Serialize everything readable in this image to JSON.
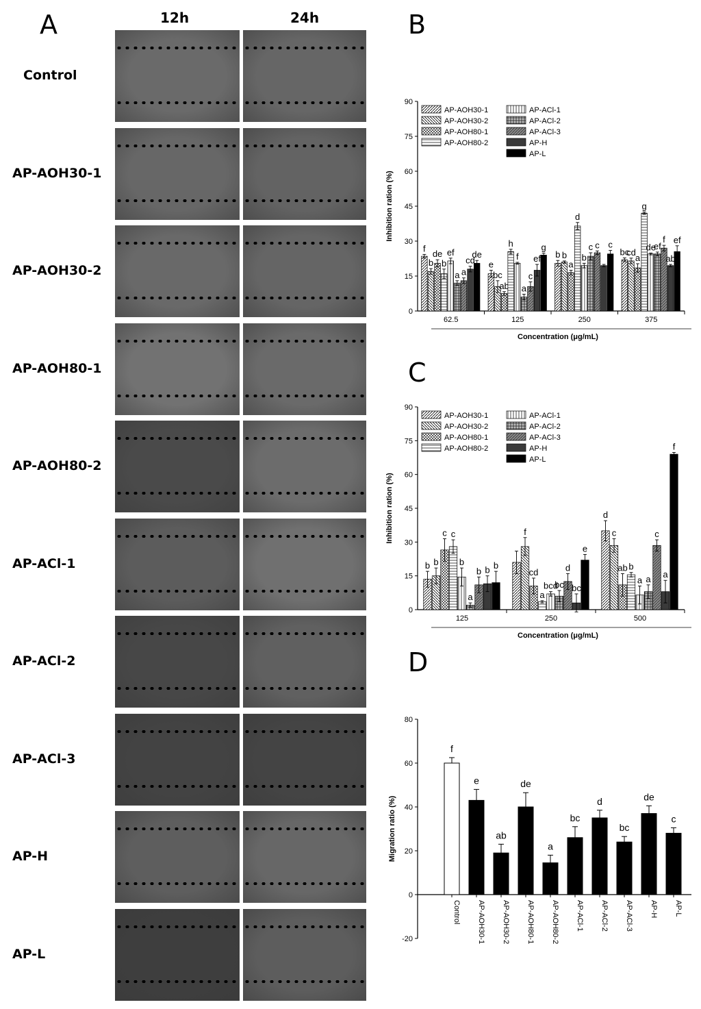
{
  "panel_labels": {
    "a": "A",
    "b": "B",
    "c": "C",
    "d": "D"
  },
  "panel_a": {
    "columns": [
      "12h",
      "24h"
    ],
    "rows": [
      "Control",
      "AP-AOH30-1",
      "AP-AOH30-2",
      "AP-AOH80-1",
      "AP-AOH80-2",
      "AP-ACl-1",
      "AP-ACl-2",
      "AP-ACl-3",
      "AP-H",
      "AP-L"
    ],
    "image_shade": [
      "#6a6a6a",
      "#676767",
      "#696969",
      "#727272",
      "#4a4a4a",
      "#5c5c5c",
      "#474747",
      "#434343",
      "#5e5e5e",
      "#3e3e3e"
    ],
    "image_shade_24": [
      "#666666",
      "#636363",
      "#656565",
      "#6a6a6a",
      "#6c6c6c",
      "#707070",
      "#606060",
      "#444444",
      "#676767",
      "#5d5d5d"
    ]
  },
  "chart_data": [
    {
      "type": "bar",
      "id": "B",
      "ylabel": "Inhibition ration (%)",
      "xlabel": "Concentration (μg/mL)",
      "ylim": [
        0,
        90
      ],
      "yticks": [
        0,
        15,
        30,
        45,
        60,
        75,
        90
      ],
      "categories": [
        "62.5",
        "125",
        "250",
        "375"
      ],
      "legend_left": [
        "AP-AOH30-1",
        "AP-AOH30-2",
        "AP-AOH80-1",
        "AP-AOH80-2"
      ],
      "legend_right": [
        "AP-ACl-1",
        "AP-ACl-2",
        "AP-ACl-3",
        "AP-H",
        "AP-L"
      ],
      "series": [
        {
          "name": "AP-AOH30-1",
          "values": [
            23.5,
            16,
            20.5,
            22
          ],
          "errors": [
            0.8,
            1.5,
            1.2,
            0.8
          ],
          "letters": [
            "f",
            "e",
            "b",
            "bc"
          ]
        },
        {
          "name": "AP-AOH30-2",
          "values": [
            17,
            10.5,
            21,
            21.5
          ],
          "errors": [
            1.2,
            2.5,
            0.5,
            1.2
          ],
          "letters": [
            "b",
            "bc",
            "b",
            "cd"
          ]
        },
        {
          "name": "AP-AOH80-1",
          "values": [
            20.5,
            7.5,
            16.5,
            18.5
          ],
          "errors": [
            1.5,
            0.8,
            1,
            1.8
          ],
          "letters": [
            "de",
            "ab",
            "a",
            "a"
          ]
        },
        {
          "name": "AP-AOH80-2",
          "values": [
            16,
            25.5,
            36.5,
            42
          ],
          "errors": [
            2,
            1,
            1.5,
            0.5
          ],
          "letters": [
            "b",
            "h",
            "d",
            "g"
          ]
        },
        {
          "name": "AP-ACl-1",
          "values": [
            21.5,
            20.5,
            19.5,
            24.5
          ],
          "errors": [
            1.2,
            0.4,
            1,
            0.4
          ],
          "letters": [
            "ef",
            "f",
            "b",
            "de"
          ]
        },
        {
          "name": "AP-ACl-2",
          "values": [
            12,
            6,
            23.5,
            24.5
          ],
          "errors": [
            1,
            1.2,
            1.5,
            0.8
          ],
          "letters": [
            "a",
            "a",
            "c",
            "ef"
          ]
        },
        {
          "name": "AP-ACl-3",
          "values": [
            13,
            10.5,
            25,
            27
          ],
          "errors": [
            1.2,
            2,
            0.8,
            1.2
          ],
          "letters": [
            "a",
            "c",
            "c",
            "f"
          ]
        },
        {
          "name": "AP-H",
          "values": [
            18,
            17.5,
            19.5,
            19.5
          ],
          "errors": [
            1.2,
            2.5,
            0.5,
            0.5
          ],
          "letters": [
            "cd",
            "ef",
            "",
            "ab"
          ]
        },
        {
          "name": "AP-L",
          "values": [
            20.5,
            24,
            24.5,
            25.5
          ],
          "errors": [
            1.2,
            0.8,
            1.5,
            2.5
          ],
          "letters": [
            "de",
            "g",
            "c",
            "ef"
          ]
        }
      ]
    },
    {
      "type": "bar",
      "id": "C",
      "ylabel": "Inhibition ration (%)",
      "xlabel": "Concentration (μg/mL)",
      "ylim": [
        0,
        90
      ],
      "yticks": [
        0,
        15,
        30,
        45,
        60,
        75,
        90
      ],
      "categories": [
        "125",
        "250",
        "500"
      ],
      "legend_left": [
        "AP-AOH30-1",
        "AP-AOH30-2",
        "AP-AOH80-1",
        "AP-AOH80-2"
      ],
      "legend_right": [
        "AP-ACl-1",
        "AP-ACl-2",
        "AP-ACl-3",
        "AP-H",
        "AP-L"
      ],
      "series": [
        {
          "name": "AP-AOH30-1",
          "values": [
            13.5,
            21,
            35
          ],
          "errors": [
            3.5,
            5,
            4.5
          ],
          "letters": [
            "b",
            "",
            "d"
          ]
        },
        {
          "name": "AP-AOH30-2",
          "values": [
            15,
            28,
            28.5
          ],
          "errors": [
            3.5,
            4,
            3
          ],
          "letters": [
            "b",
            "f",
            "c"
          ]
        },
        {
          "name": "AP-AOH80-1",
          "values": [
            26.5,
            10.5,
            11
          ],
          "errors": [
            5,
            3.5,
            5
          ],
          "letters": [
            "c",
            "cd",
            "ab"
          ]
        },
        {
          "name": "AP-AOH80-2",
          "values": [
            28,
            3.5,
            15.5
          ],
          "errors": [
            3,
            0.5,
            1
          ],
          "letters": [
            "c",
            "a",
            "b"
          ]
        },
        {
          "name": "AP-ACl-1",
          "values": [
            14.5,
            7,
            6.5
          ],
          "errors": [
            4,
            1,
            4
          ],
          "letters": [
            "b",
            "bcd",
            "a"
          ]
        },
        {
          "name": "AP-ACl-2",
          "values": [
            2,
            6,
            8
          ],
          "errors": [
            1,
            2.5,
            3
          ],
          "letters": [
            "a",
            "bc",
            "a"
          ]
        },
        {
          "name": "AP-ACl-3",
          "values": [
            11,
            12.5,
            28.5
          ],
          "errors": [
            3.5,
            3.5,
            2.5
          ],
          "letters": [
            "b",
            "d",
            "c"
          ]
        },
        {
          "name": "AP-H",
          "values": [
            11.5,
            3,
            8
          ],
          "errors": [
            3.5,
            4,
            5
          ],
          "letters": [
            "b",
            "bc",
            "a"
          ]
        },
        {
          "name": "AP-L",
          "values": [
            12,
            22,
            69
          ],
          "errors": [
            5,
            2.5,
            0.8
          ],
          "letters": [
            "b",
            "e",
            "f"
          ]
        }
      ]
    },
    {
      "type": "bar",
      "id": "D",
      "ylabel": "Migration ratio (%)",
      "ylim": [
        -20,
        80
      ],
      "yticks": [
        -20,
        0,
        20,
        40,
        60,
        80
      ],
      "categories": [
        "Control",
        "AP-AOH30-1",
        "AP-AOH30-2",
        "AP-AOH80-1",
        "AP-AOH80-2",
        "AP-ACl-1",
        "AP-ACl-2",
        "AP-ACl-3",
        "AP-H",
        "AP-L"
      ],
      "values": [
        60,
        43,
        19,
        40,
        14.5,
        26,
        35,
        24,
        37,
        28
      ],
      "errors": [
        2.5,
        5,
        4,
        6.5,
        3.5,
        5,
        3.5,
        2.5,
        3.5,
        2.5
      ],
      "letters": [
        "f",
        "e",
        "ab",
        "de",
        "a",
        "bc",
        "d",
        "bc",
        "de",
        "c"
      ]
    }
  ]
}
